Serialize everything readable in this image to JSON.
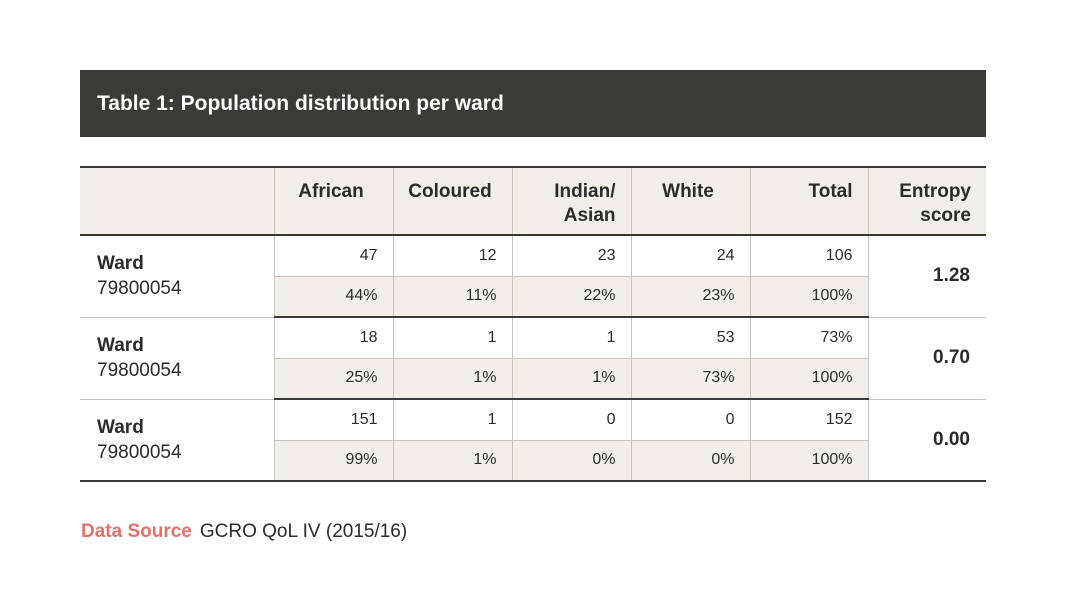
{
  "title": "Table 1: Population distribution per ward",
  "headers": [
    "",
    "African",
    "Coloured",
    "Indian/\nAsian",
    "White",
    "Total",
    "Entropy\nscore"
  ],
  "rows": [
    {
      "ward_label": "Ward",
      "ward_id": "79800054",
      "counts": [
        "47",
        "12",
        "23",
        "24",
        "106"
      ],
      "percents": [
        "44%",
        "11%",
        "22%",
        "23%",
        "100%"
      ],
      "entropy": "1.28"
    },
    {
      "ward_label": "Ward",
      "ward_id": "79800054",
      "counts": [
        "18",
        "1",
        "1",
        "53",
        "73%"
      ],
      "percents": [
        "25%",
        "1%",
        "1%",
        "73%",
        "100%"
      ],
      "entropy": "0.70"
    },
    {
      "ward_label": "Ward",
      "ward_id": "79800054",
      "counts": [
        "151",
        "1",
        "0",
        "0",
        "152"
      ],
      "percents": [
        "99%",
        "1%",
        "0%",
        "0%",
        "100%"
      ],
      "entropy": "0.00"
    }
  ],
  "source": {
    "label": "Data Source",
    "text": "GCRO QoL IV (2015/16)"
  },
  "colors": {
    "title_bar": "#3a3a38",
    "shaded_row": "#f2efea",
    "source_label": "#e8706a"
  }
}
